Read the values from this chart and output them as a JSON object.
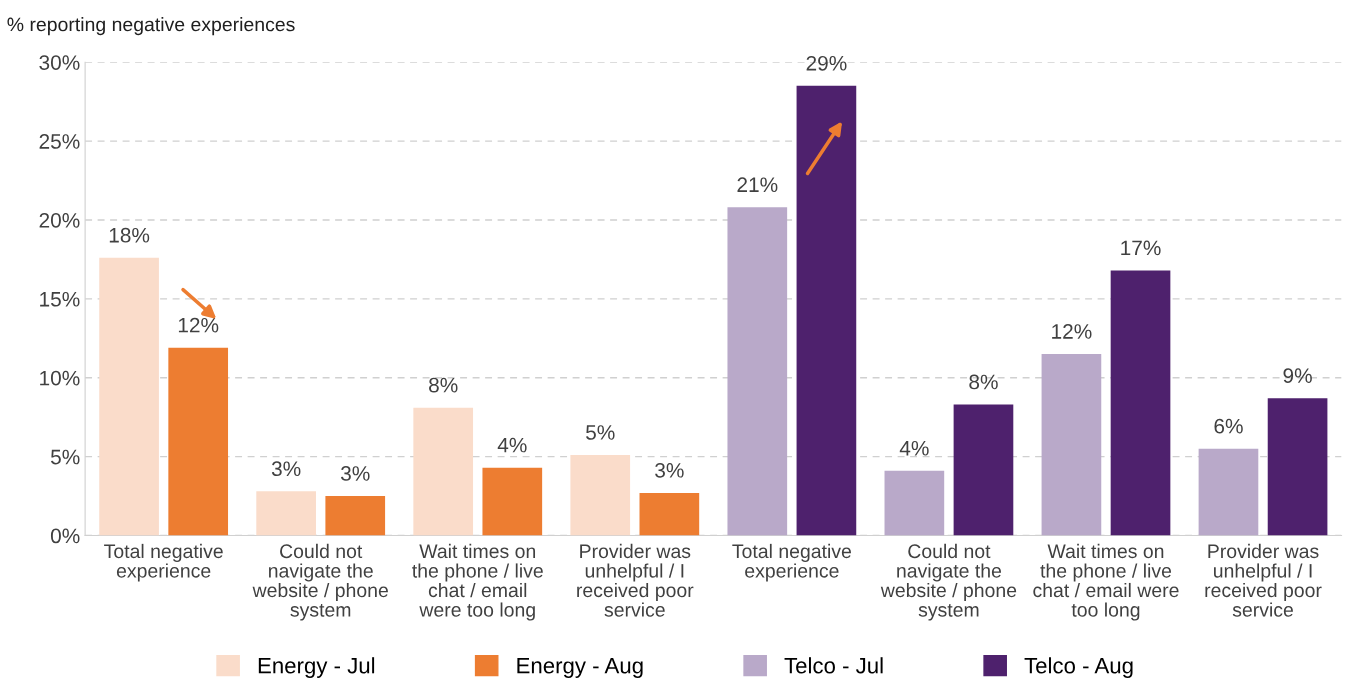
{
  "chart_data": {
    "type": "bar",
    "ylabel": "% reporting negative experiences",
    "categories": [
      "Total negative\nexperience",
      "Could not\nnavigate the\nwebsite / phone\nsystem",
      "Wait times on\nthe phone / live\nchat / email\nwere too long",
      "Provider was\nunhelpful / I\nreceived poor\nservice",
      "Total negative\nexperience",
      "Could not\nnavigate the\nwebsite / phone\nsystem",
      "Wait times on\nthe phone / live\nchat / email were\ntoo long",
      "Provider was\nunhelpful / I\nreceived poor\nservice"
    ],
    "series": [
      {
        "name": "Energy - Jul",
        "color": "#fadcca",
        "values": [
          17.6,
          2.8,
          8.1,
          5.1,
          null,
          null,
          null,
          null
        ],
        "value_labels": [
          "18%",
          "3%",
          "8%",
          "5%",
          null,
          null,
          null,
          null
        ]
      },
      {
        "name": "Energy - Aug",
        "color": "#ed7d31",
        "values": [
          11.9,
          2.5,
          4.3,
          2.7,
          null,
          null,
          null,
          null
        ],
        "value_labels": [
          "12%",
          "3%",
          "4%",
          "3%",
          null,
          null,
          null,
          null
        ]
      },
      {
        "name": "Telco - Jul",
        "color": "#b9a9c9",
        "values": [
          null,
          null,
          null,
          null,
          20.8,
          4.1,
          11.5,
          5.5
        ],
        "value_labels": [
          null,
          null,
          null,
          null,
          "21%",
          "4%",
          "12%",
          "6%"
        ]
      },
      {
        "name": "Telco - Aug",
        "color": "#4e216d",
        "values": [
          null,
          null,
          null,
          null,
          28.5,
          8.3,
          16.8,
          8.7
        ],
        "value_labels": [
          null,
          null,
          null,
          null,
          "29%",
          "8%",
          "17%",
          "9%"
        ]
      }
    ],
    "ylim": [
      0,
      30
    ],
    "yticks": [
      {
        "value": 0,
        "label": "0%"
      },
      {
        "value": 5,
        "label": "5%"
      },
      {
        "value": 10,
        "label": "10%"
      },
      {
        "value": 15,
        "label": "15%"
      },
      {
        "value": 20,
        "label": "20%"
      },
      {
        "value": 25,
        "label": "25%"
      },
      {
        "value": 30,
        "label": "30%"
      }
    ],
    "grid": "y",
    "legend": "bottom"
  }
}
